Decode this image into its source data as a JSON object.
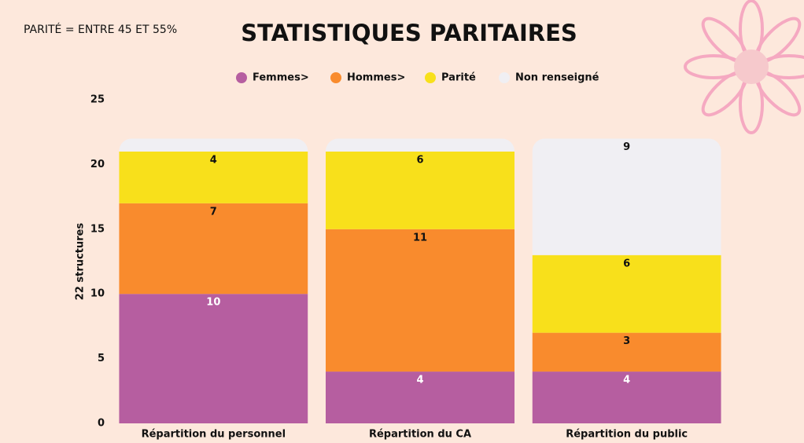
{
  "chart_data": {
    "type": "stacked_bar",
    "title": "STATISTIQUES PARITAIRES",
    "note": "PARITÉ  = ENTRE 45 ET 55%",
    "y_label": "22 structures",
    "categories": [
      "Répartition du personnel",
      "Répartition du CA",
      "Répartition du public"
    ],
    "series": [
      {
        "name": "Femmes>",
        "color": "#b65ea0",
        "label_color": "#ffffff",
        "values": [
          10,
          4,
          4
        ]
      },
      {
        "name": "Hommes>",
        "color": "#f98b2d",
        "label_color": "#111111",
        "values": [
          7,
          11,
          3
        ]
      },
      {
        "name": "Parité",
        "color": "#f8e01b",
        "label_color": "#111111",
        "values": [
          4,
          6,
          6
        ]
      },
      {
        "name": "Non renseigné",
        "color": "#f0eff3",
        "label_color": "#111111",
        "values": [
          1,
          1,
          9
        ]
      }
    ],
    "ylim": [
      0,
      25
    ],
    "yticks": [
      0,
      5,
      10,
      15,
      20,
      25
    ],
    "grid": false
  }
}
